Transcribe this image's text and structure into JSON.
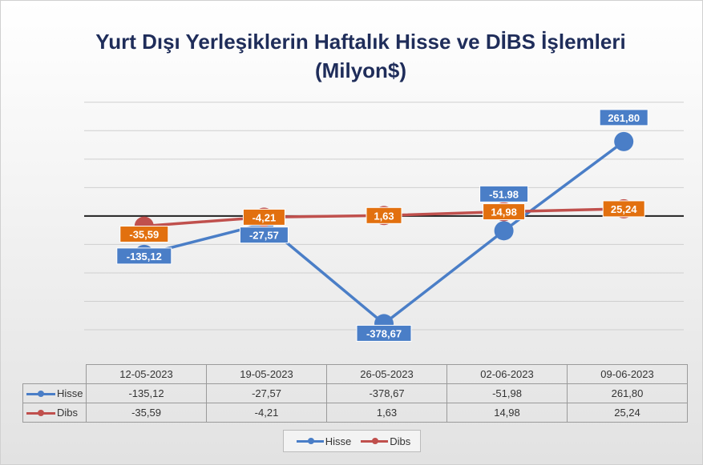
{
  "chart_data": {
    "type": "line",
    "title_line1": "Yurt Dışı Yerleşiklerin Haftalık Hisse ve DİBS İşlemleri",
    "title_line2": "(Milyon$)",
    "categories": [
      "12-05-2023",
      "19-05-2023",
      "26-05-2023",
      "02-06-2023",
      "09-06-2023"
    ],
    "series": [
      {
        "name": "Hisse",
        "color": "#4a7ec7",
        "values": [
          -135.12,
          -27.57,
          -378.67,
          -51.98,
          261.8
        ],
        "labels": [
          "-135,12",
          "-27,57",
          "-378,67",
          "-51.98",
          "261,80"
        ],
        "table_values": [
          "-135,12",
          "-27,57",
          "-378,67",
          "-51,98",
          "261,80"
        ]
      },
      {
        "name": "Dibs",
        "color": "#c0504d",
        "label_color": "#e2700f",
        "values": [
          -35.59,
          -4.21,
          1.63,
          14.98,
          25.24
        ],
        "labels": [
          "-35,59",
          "-4,21",
          "1,63",
          "14,98",
          "25,24"
        ],
        "table_values": [
          "-35,59",
          "-4,21",
          "1,63",
          "14,98",
          "25,24"
        ]
      }
    ],
    "ylim": [
      -400,
      450
    ],
    "grid": true,
    "legend_placement": "bottom",
    "data_table": true
  }
}
